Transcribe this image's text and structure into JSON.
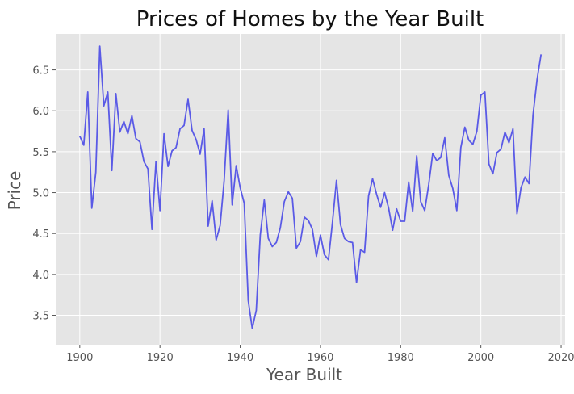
{
  "chart_data": {
    "type": "line",
    "title": "Prices of Homes by the Year Built",
    "xlabel": "Year Built",
    "ylabel": "Price",
    "xlim": [
      1894,
      2021
    ],
    "ylim": [
      3.14,
      6.94
    ],
    "xticks": [
      1900,
      1920,
      1940,
      1960,
      1980,
      2000,
      2020
    ],
    "xtick_labels": [
      "1900",
      "1920",
      "1940",
      "1960",
      "1980",
      "2000",
      "2020"
    ],
    "yticks": [
      3.5,
      4.0,
      4.5,
      5.0,
      5.5,
      6.0,
      6.5
    ],
    "ytick_labels": [
      "3.5",
      "4.0",
      "4.5",
      "5.0",
      "5.5",
      "6.0",
      "6.5"
    ],
    "grid": true,
    "series": [
      {
        "color": "#5a5ae6",
        "x": [
          1900,
          1901,
          1902,
          1903,
          1904,
          1905,
          1906,
          1907,
          1908,
          1909,
          1910,
          1911,
          1912,
          1913,
          1914,
          1915,
          1916,
          1917,
          1918,
          1919,
          1920,
          1921,
          1922,
          1923,
          1924,
          1925,
          1926,
          1927,
          1928,
          1929,
          1930,
          1931,
          1932,
          1933,
          1934,
          1935,
          1936,
          1937,
          1938,
          1939,
          1940,
          1941,
          1942,
          1943,
          1944,
          1945,
          1946,
          1947,
          1948,
          1949,
          1950,
          1951,
          1952,
          1953,
          1954,
          1955,
          1956,
          1957,
          1958,
          1959,
          1960,
          1961,
          1962,
          1963,
          1964,
          1965,
          1966,
          1967,
          1968,
          1969,
          1970,
          1971,
          1972,
          1973,
          1974,
          1975,
          1976,
          1977,
          1978,
          1979,
          1980,
          1981,
          1982,
          1983,
          1984,
          1985,
          1986,
          1987,
          1988,
          1989,
          1990,
          1991,
          1992,
          1993,
          1994,
          1995,
          1996,
          1997,
          1998,
          1999,
          2000,
          2001,
          2002,
          2003,
          2004,
          2005,
          2006,
          2007,
          2008,
          2009,
          2010,
          2011,
          2012,
          2013,
          2014,
          2015
        ],
        "y": [
          5.69,
          5.58,
          6.23,
          4.81,
          5.25,
          6.79,
          6.06,
          6.23,
          5.27,
          6.21,
          5.74,
          5.87,
          5.72,
          5.94,
          5.66,
          5.62,
          5.38,
          5.29,
          4.55,
          5.38,
          4.78,
          5.72,
          5.32,
          5.51,
          5.55,
          5.78,
          5.82,
          6.14,
          5.76,
          5.65,
          5.47,
          5.78,
          4.59,
          4.9,
          4.42,
          4.6,
          5.15,
          6.01,
          4.85,
          5.33,
          5.06,
          4.87,
          3.68,
          3.34,
          3.56,
          4.48,
          4.91,
          4.44,
          4.34,
          4.39,
          4.57,
          4.89,
          5.01,
          4.93,
          4.32,
          4.4,
          4.7,
          4.66,
          4.55,
          4.22,
          4.48,
          4.24,
          4.18,
          4.64,
          5.15,
          4.61,
          4.44,
          4.4,
          4.39,
          3.9,
          4.3,
          4.27,
          4.96,
          5.17,
          4.98,
          4.82,
          5.0,
          4.81,
          4.54,
          4.8,
          4.65,
          4.65,
          5.13,
          4.77,
          5.45,
          4.89,
          4.78,
          5.1,
          5.48,
          5.39,
          5.43,
          5.67,
          5.21,
          5.05,
          4.78,
          5.55,
          5.8,
          5.64,
          5.59,
          5.75,
          6.19,
          6.23,
          5.35,
          5.23,
          5.49,
          5.53,
          5.74,
          5.61,
          5.78,
          4.74,
          5.06,
          5.19,
          5.11,
          5.95,
          6.38,
          6.69
        ]
      }
    ]
  }
}
